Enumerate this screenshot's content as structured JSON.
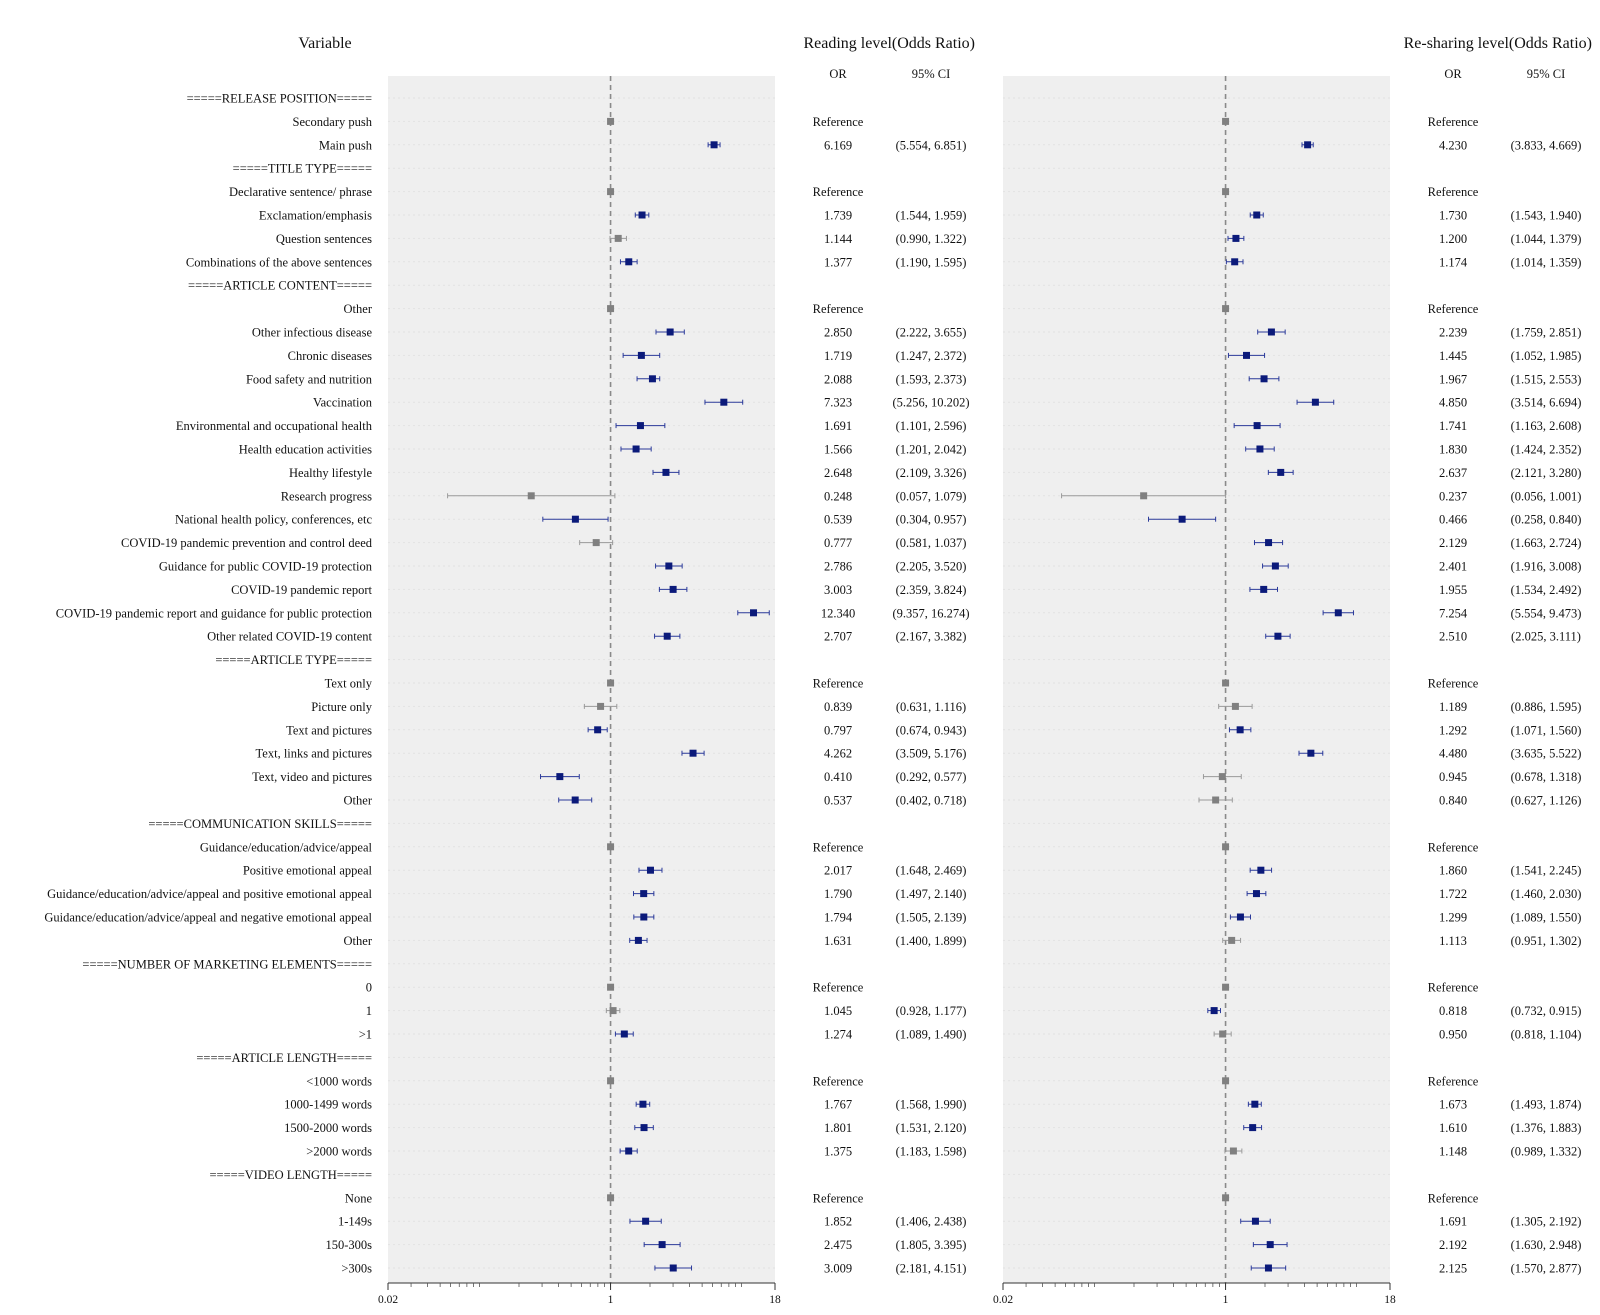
{
  "headers": {
    "variable": "Variable",
    "panel_titles": [
      "Reading level(Odds Ratio)",
      "Re-sharing level(Odds Ratio)"
    ],
    "or_col": "OR",
    "ci_col": "95% CI"
  },
  "colors": {
    "significant": "#0b1a7a",
    "reference_or_ns": "#808080",
    "panel_bg": "#efefef",
    "ref_line": "#8a8a8a"
  },
  "chart_data": {
    "type": "forest",
    "x_scale": "log",
    "xlim": [
      0.02,
      18
    ],
    "x_ticks": [
      {
        "value": 0.02,
        "label": "0.02"
      },
      {
        "value": 1,
        "label": "1"
      },
      {
        "value": 18,
        "label": "18"
      }
    ],
    "reference_value": 1,
    "panels": [
      {
        "name": "Reading level(Odds Ratio)"
      },
      {
        "name": "Re-sharing level(Odds Ratio)"
      }
    ],
    "rows": [
      {
        "label": "=====RELEASE POSITION=====",
        "header": true
      },
      {
        "label": "Secondary push",
        "ref": true
      },
      {
        "label": "Main push",
        "r": [
          6.169,
          5.554,
          6.851,
          "6.169",
          "(5.554, 6.851)",
          true
        ],
        "s": [
          4.23,
          3.833,
          4.669,
          "4.230",
          "(3.833, 4.669)",
          true
        ]
      },
      {
        "label": "=====TITLE TYPE=====",
        "header": true
      },
      {
        "label": "Declarative sentence/ phrase",
        "ref": true
      },
      {
        "label": "Exclamation/emphasis",
        "r": [
          1.739,
          1.544,
          1.959,
          "1.739",
          "(1.544, 1.959)",
          true
        ],
        "s": [
          1.73,
          1.543,
          1.94,
          "1.730",
          "(1.543, 1.940)",
          true
        ]
      },
      {
        "label": "Question sentences",
        "r": [
          1.144,
          0.99,
          1.322,
          "1.144",
          "(0.990, 1.322)",
          false
        ],
        "s": [
          1.2,
          1.044,
          1.379,
          "1.200",
          "(1.044, 1.379)",
          true
        ]
      },
      {
        "label": "Combinations of the above sentences",
        "r": [
          1.377,
          1.19,
          1.595,
          "1.377",
          "(1.190, 1.595)",
          true
        ],
        "s": [
          1.174,
          1.014,
          1.359,
          "1.174",
          "(1.014, 1.359)",
          true
        ]
      },
      {
        "label": "=====ARTICLE CONTENT=====",
        "header": true
      },
      {
        "label": "Other",
        "ref": true
      },
      {
        "label": "Other infectious disease",
        "r": [
          2.85,
          2.222,
          3.655,
          "2.850",
          "(2.222, 3.655)",
          true
        ],
        "s": [
          2.239,
          1.759,
          2.851,
          "2.239",
          "(1.759, 2.851)",
          true
        ]
      },
      {
        "label": "Chronic diseases",
        "r": [
          1.719,
          1.247,
          2.372,
          "1.719",
          "(1.247, 2.372)",
          true
        ],
        "s": [
          1.445,
          1.052,
          1.985,
          "1.445",
          "(1.052, 1.985)",
          true
        ]
      },
      {
        "label": "Food safety and nutrition",
        "r": [
          2.088,
          1.593,
          2.373,
          "2.088",
          "(1.593, 2.373)",
          true
        ],
        "s": [
          1.967,
          1.515,
          2.553,
          "1.967",
          "(1.515, 2.553)",
          true
        ]
      },
      {
        "label": "Vaccination",
        "r": [
          7.323,
          5.256,
          10.202,
          "7.323",
          "(5.256, 10.202)",
          true
        ],
        "s": [
          4.85,
          3.514,
          6.694,
          "4.850",
          "(3.514, 6.694)",
          true
        ]
      },
      {
        "label": "Environmental and occupational health",
        "r": [
          1.691,
          1.101,
          2.596,
          "1.691",
          "(1.101, 2.596)",
          true
        ],
        "s": [
          1.741,
          1.163,
          2.608,
          "1.741",
          "(1.163, 2.608)",
          true
        ]
      },
      {
        "label": "Health education activities",
        "r": [
          1.566,
          1.201,
          2.042,
          "1.566",
          "(1.201, 2.042)",
          true
        ],
        "s": [
          1.83,
          1.424,
          2.352,
          "1.830",
          "(1.424, 2.352)",
          true
        ]
      },
      {
        "label": "Healthy lifestyle",
        "r": [
          2.648,
          2.109,
          3.326,
          "2.648",
          "(2.109, 3.326)",
          true
        ],
        "s": [
          2.637,
          2.121,
          3.28,
          "2.637",
          "(2.121, 3.280)",
          true
        ]
      },
      {
        "label": "Research progress",
        "r": [
          0.248,
          0.057,
          1.079,
          "0.248",
          "(0.057, 1.079)",
          false
        ],
        "s": [
          0.237,
          0.056,
          1.001,
          "0.237",
          "(0.056, 1.001)",
          false
        ]
      },
      {
        "label": "National health policy, conferences, etc",
        "r": [
          0.539,
          0.304,
          0.957,
          "0.539",
          "(0.304, 0.957)",
          true
        ],
        "s": [
          0.466,
          0.258,
          0.84,
          "0.466",
          "(0.258, 0.840)",
          true
        ]
      },
      {
        "label": "COVID-19 pandemic prevention and control deed",
        "r": [
          0.777,
          0.581,
          1.037,
          "0.777",
          "(0.581, 1.037)",
          false
        ],
        "s": [
          2.129,
          1.663,
          2.724,
          "2.129",
          "(1.663, 2.724)",
          true
        ]
      },
      {
        "label": "Guidance for public COVID-19 protection",
        "r": [
          2.786,
          2.205,
          3.52,
          "2.786",
          "(2.205, 3.520)",
          true
        ],
        "s": [
          2.401,
          1.916,
          3.008,
          "2.401",
          "(1.916, 3.008)",
          true
        ]
      },
      {
        "label": "COVID-19 pandemic report",
        "r": [
          3.003,
          2.359,
          3.824,
          "3.003",
          "(2.359, 3.824)",
          true
        ],
        "s": [
          1.955,
          1.534,
          2.492,
          "1.955",
          "(1.534, 2.492)",
          true
        ]
      },
      {
        "label": "COVID-19 pandemic report and guidance for public protection",
        "r": [
          12.34,
          9.357,
          16.274,
          "12.340",
          "(9.357, 16.274)",
          true
        ],
        "s": [
          7.254,
          5.554,
          9.473,
          "7.254",
          "(5.554, 9.473)",
          true
        ]
      },
      {
        "label": "Other related COVID-19 content",
        "r": [
          2.707,
          2.167,
          3.382,
          "2.707",
          "(2.167, 3.382)",
          true
        ],
        "s": [
          2.51,
          2.025,
          3.111,
          "2.510",
          "(2.025, 3.111)",
          true
        ]
      },
      {
        "label": "=====ARTICLE TYPE=====",
        "header": true
      },
      {
        "label": "Text only",
        "ref": true
      },
      {
        "label": "Picture only",
        "r": [
          0.839,
          0.631,
          1.116,
          "0.839",
          "(0.631, 1.116)",
          false
        ],
        "s": [
          1.189,
          0.886,
          1.595,
          "1.189",
          "(0.886, 1.595)",
          false
        ]
      },
      {
        "label": "Text and pictures",
        "r": [
          0.797,
          0.674,
          0.943,
          "0.797",
          "(0.674, 0.943)",
          true
        ],
        "s": [
          1.292,
          1.071,
          1.56,
          "1.292",
          "(1.071, 1.560)",
          true
        ]
      },
      {
        "label": "Text, links and pictures",
        "r": [
          4.262,
          3.509,
          5.176,
          "4.262",
          "(3.509, 5.176)",
          true
        ],
        "s": [
          4.48,
          3.635,
          5.522,
          "4.480",
          "(3.635, 5.522)",
          true
        ]
      },
      {
        "label": "Text, video and pictures",
        "r": [
          0.41,
          0.292,
          0.577,
          "0.410",
          "(0.292, 0.577)",
          true
        ],
        "s": [
          0.945,
          0.678,
          1.318,
          "0.945",
          "(0.678, 1.318)",
          false
        ]
      },
      {
        "label": "Other",
        "r": [
          0.537,
          0.402,
          0.718,
          "0.537",
          "(0.402, 0.718)",
          true
        ],
        "s": [
          0.84,
          0.627,
          1.126,
          "0.840",
          "(0.627, 1.126)",
          false
        ]
      },
      {
        "label": "=====COMMUNICATION SKILLS=====",
        "header": true
      },
      {
        "label": "Guidance/education/advice/appeal",
        "ref": true
      },
      {
        "label": "Positive emotional appeal",
        "r": [
          2.017,
          1.648,
          2.469,
          "2.017",
          "(1.648, 2.469)",
          true
        ],
        "s": [
          1.86,
          1.541,
          2.245,
          "1.860",
          "(1.541, 2.245)",
          true
        ]
      },
      {
        "label": "Guidance/education/advice/appeal and positive emotional appeal",
        "r": [
          1.79,
          1.497,
          2.14,
          "1.790",
          "(1.497, 2.140)",
          true
        ],
        "s": [
          1.722,
          1.46,
          2.03,
          "1.722",
          "(1.460, 2.030)",
          true
        ]
      },
      {
        "label": "Guidance/education/advice/appeal and negative emotional appeal",
        "r": [
          1.794,
          1.505,
          2.139,
          "1.794",
          "(1.505, 2.139)",
          true
        ],
        "s": [
          1.299,
          1.089,
          1.55,
          "1.299",
          "(1.089, 1.550)",
          true
        ]
      },
      {
        "label": "Other",
        "r": [
          1.631,
          1.4,
          1.899,
          "1.631",
          "(1.400, 1.899)",
          true
        ],
        "s": [
          1.113,
          0.951,
          1.302,
          "1.113",
          "(0.951, 1.302)",
          false
        ]
      },
      {
        "label": "=====NUMBER OF MARKETING ELEMENTS=====",
        "header": true
      },
      {
        "label": "0",
        "ref": true
      },
      {
        "label": "1",
        "r": [
          1.045,
          0.928,
          1.177,
          "1.045",
          "(0.928, 1.177)",
          false
        ],
        "s": [
          0.818,
          0.732,
          0.915,
          "0.818",
          "(0.732, 0.915)",
          true
        ]
      },
      {
        "label": ">1",
        "r": [
          1.274,
          1.089,
          1.49,
          "1.274",
          "(1.089, 1.490)",
          true
        ],
        "s": [
          0.95,
          0.818,
          1.104,
          "0.950",
          "(0.818, 1.104)",
          false
        ]
      },
      {
        "label": "=====ARTICLE LENGTH=====",
        "header": true
      },
      {
        "label": "<1000 words",
        "ref": true
      },
      {
        "label": "1000-1499 words",
        "r": [
          1.767,
          1.568,
          1.99,
          "1.767",
          "(1.568, 1.990)",
          true
        ],
        "s": [
          1.673,
          1.493,
          1.874,
          "1.673",
          "(1.493, 1.874)",
          true
        ]
      },
      {
        "label": "1500-2000 words",
        "r": [
          1.801,
          1.531,
          2.12,
          "1.801",
          "(1.531, 2.120)",
          true
        ],
        "s": [
          1.61,
          1.376,
          1.883,
          "1.610",
          "(1.376, 1.883)",
          true
        ]
      },
      {
        "label": ">2000 words",
        "r": [
          1.375,
          1.183,
          1.598,
          "1.375",
          "(1.183, 1.598)",
          true
        ],
        "s": [
          1.148,
          0.989,
          1.332,
          "1.148",
          "(0.989, 1.332)",
          false
        ]
      },
      {
        "label": "=====VIDEO LENGTH=====",
        "header": true
      },
      {
        "label": "None",
        "ref": true
      },
      {
        "label": "1-149s",
        "r": [
          1.852,
          1.406,
          2.438,
          "1.852",
          "(1.406, 2.438)",
          true
        ],
        "s": [
          1.691,
          1.305,
          2.192,
          "1.691",
          "(1.305, 2.192)",
          true
        ]
      },
      {
        "label": "150-300s",
        "r": [
          2.475,
          1.805,
          3.395,
          "2.475",
          "(1.805, 3.395)",
          true
        ],
        "s": [
          2.192,
          1.63,
          2.948,
          "2.192",
          "(1.630, 2.948)",
          true
        ]
      },
      {
        "label": ">300s",
        "r": [
          3.009,
          2.181,
          4.151,
          "3.009",
          "(2.181, 4.151)",
          true
        ],
        "s": [
          2.125,
          1.57,
          2.877,
          "2.125",
          "(1.570, 2.877)",
          true
        ]
      }
    ],
    "reference_text": "Reference"
  }
}
